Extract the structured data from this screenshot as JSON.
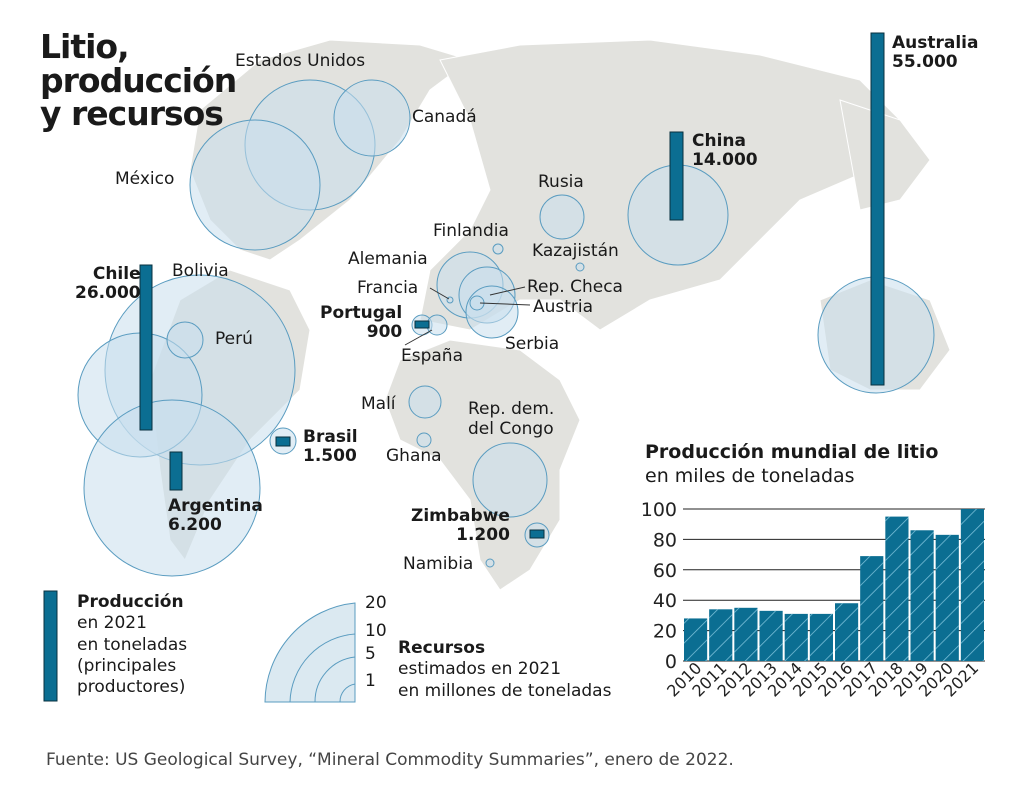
{
  "title": [
    "Litio,",
    "producción",
    "y recursos"
  ],
  "countries": {
    "eeuu": "Estados Unidos",
    "canada": "Canadá",
    "mexico": "México",
    "rusia": "Rusia",
    "finlandia": "Finlandia",
    "kazajistan": "Kazajistán",
    "alemania": "Alemania",
    "francia": "Francia",
    "rep_checa": "Rep. Checa",
    "austria": "Austria",
    "serbia": "Serbia",
    "espana": "España",
    "mali": "Malí",
    "ghana": "Ghana",
    "rdc": [
      "Rep. dem.",
      "del Congo"
    ],
    "namibia": "Namibia",
    "bolivia": "Bolivia",
    "peru": "Perú"
  },
  "producers": [
    {
      "name": "Australia",
      "value": "55.000"
    },
    {
      "name": "China",
      "value": "14.000"
    },
    {
      "name": "Chile",
      "value": "26.000"
    },
    {
      "name": "Argentina",
      "value": "6.200"
    },
    {
      "name": "Brasil",
      "value": "1.500"
    },
    {
      "name": "Portugal",
      "value": "900"
    },
    {
      "name": "Zimbabwe",
      "value": "1.200"
    }
  ],
  "legend": {
    "production": {
      "title": "Producción",
      "lines": [
        "en 2021",
        "en toneladas",
        "(principales",
        "productores)"
      ]
    },
    "resources": {
      "title": "Recursos",
      "lines": [
        "estimados en 2021",
        "en millones de toneladas"
      ],
      "scale": [
        "20",
        "10",
        "5",
        "1"
      ]
    }
  },
  "colors": {
    "bar": "#0b6e92",
    "circle": "#c9dfec",
    "land": "#e2e2de"
  },
  "source": "Fuente: US Geological Survey, “Mineral Commodity Summaries”, enero de 2022.",
  "chart_data": {
    "type": "bar",
    "title": "Producción mundial de litio",
    "subtitle": "en miles de toneladas",
    "categories": [
      "2010",
      "2011",
      "2012",
      "2013",
      "2014",
      "2015",
      "2016",
      "2017",
      "2018",
      "2019",
      "2020",
      "2021"
    ],
    "values": [
      28,
      34,
      35,
      33,
      31,
      31,
      38,
      69,
      95,
      86,
      83,
      100
    ],
    "yticks": [
      "0",
      "20",
      "40",
      "60",
      "80",
      "100"
    ],
    "ylim": [
      0,
      100
    ],
    "grid": true
  }
}
